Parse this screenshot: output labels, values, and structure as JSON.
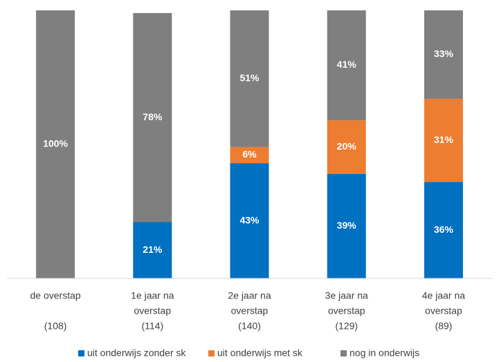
{
  "chart_data": {
    "type": "stacked_bar",
    "categories": [
      [
        "de overstap",
        "(108)"
      ],
      [
        "1e jaar na",
        "overstap",
        "(114)"
      ],
      [
        "2e jaar na",
        "overstap",
        "(140)"
      ],
      [
        "3e jaar na",
        "overstap",
        "(129)"
      ],
      [
        "4e jaar na",
        "overstap",
        "(89)"
      ]
    ],
    "series": [
      {
        "name": "uit onderwijs zonder sk",
        "color": "#0070c0",
        "values": [
          0,
          21,
          43,
          39,
          36
        ],
        "value_labels": [
          null,
          "21%",
          "43%",
          "39%",
          "36%"
        ]
      },
      {
        "name": "uit onderwijs met sk",
        "color": "#ed7d31",
        "values": [
          0,
          0,
          6,
          20,
          31
        ],
        "value_labels": [
          null,
          null,
          "6%",
          "20%",
          "31%"
        ]
      },
      {
        "name": "nog in onderwijs",
        "color": "#7f7f7f",
        "values": [
          100,
          78,
          51,
          41,
          33
        ],
        "value_labels": [
          "100%",
          "78%",
          "51%",
          "41%",
          "33%"
        ]
      }
    ],
    "ylim": [
      0,
      100
    ],
    "legend": "bottom"
  }
}
